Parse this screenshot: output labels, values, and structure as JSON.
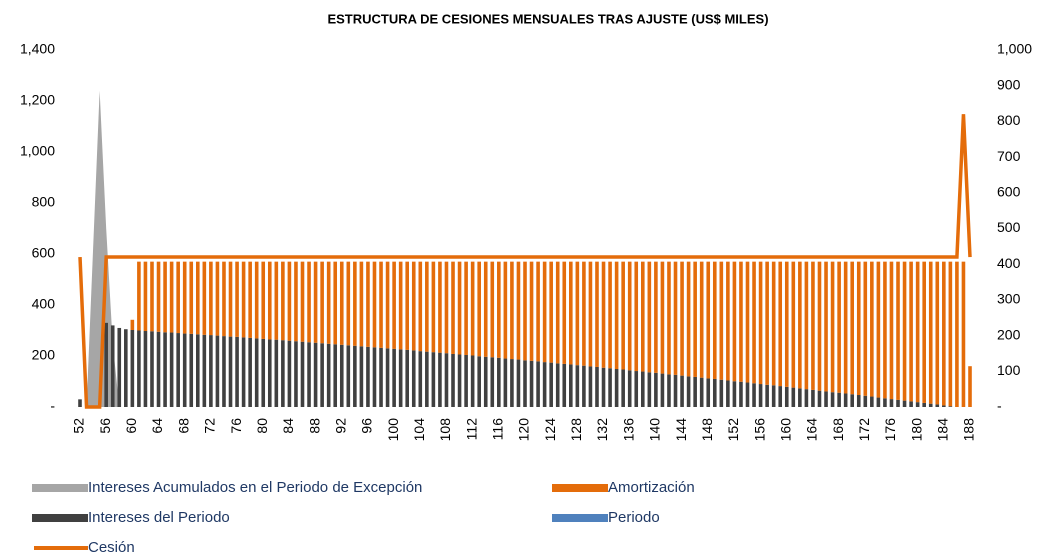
{
  "chart_data": {
    "type": "bar",
    "title": "ESTRUCTURA DE CESIONES MENSUALES TRAS AJUSTE (US$ MILES)",
    "categories": [
      "52",
      null,
      null,
      null,
      "56",
      null,
      null,
      null,
      "60",
      null,
      null,
      null,
      "64",
      null,
      null,
      null,
      "68",
      null,
      null,
      null,
      "72",
      null,
      null,
      null,
      "76",
      null,
      null,
      null,
      "80",
      null,
      null,
      null,
      "84",
      null,
      null,
      null,
      "88",
      null,
      null,
      null,
      "92",
      null,
      null,
      null,
      "96",
      null,
      null,
      null,
      "100",
      null,
      null,
      null,
      "104",
      null,
      null,
      null,
      "108",
      null,
      null,
      null,
      "112",
      null,
      null,
      null,
      "116",
      null,
      null,
      null,
      "120",
      null,
      null,
      null,
      "124",
      null,
      null,
      null,
      "128",
      null,
      null,
      null,
      "132",
      null,
      null,
      null,
      "136",
      null,
      null,
      null,
      "140",
      null,
      null,
      null,
      "144",
      null,
      null,
      null,
      "148",
      null,
      null,
      null,
      "152",
      null,
      null,
      null,
      "156",
      null,
      null,
      null,
      "160",
      null,
      null,
      null,
      "164",
      null,
      null,
      null,
      "168",
      null,
      null,
      null,
      "172",
      null,
      null,
      null,
      "176",
      null,
      null,
      null,
      "180",
      null,
      null,
      null,
      "184",
      null,
      null,
      null,
      "188"
    ],
    "series": [
      {
        "name": "Intereses Acumulados en el Periodo de Excepción",
        "type": "area",
        "color": "#a6a6a6",
        "values": [
          0,
          0,
          620,
          1240,
          700,
          250,
          0,
          0,
          0,
          0,
          0,
          0,
          0,
          0,
          0,
          0,
          0,
          0,
          0,
          0,
          0,
          0,
          0,
          0,
          0,
          0,
          0,
          0,
          0,
          0,
          0,
          0,
          0,
          0,
          0,
          0,
          0,
          0,
          0,
          0,
          0,
          0,
          0,
          0,
          0,
          0,
          0,
          0,
          0,
          0,
          0,
          0,
          0,
          0,
          0,
          0,
          0,
          0,
          0,
          0,
          0,
          0,
          0,
          0,
          0,
          0,
          0,
          0,
          0,
          0,
          0,
          0,
          0,
          0,
          0,
          0,
          0,
          0,
          0,
          0,
          0,
          0,
          0,
          0,
          0,
          0,
          0,
          0,
          0,
          0,
          0,
          0,
          0,
          0,
          0,
          0,
          0,
          0,
          0,
          0,
          0,
          0,
          0,
          0,
          0,
          0,
          0,
          0,
          0,
          0,
          0,
          0,
          0,
          0,
          0,
          0,
          0,
          0,
          0,
          0,
          0,
          0,
          0,
          0,
          0,
          0,
          0,
          0,
          0,
          0,
          0,
          0,
          0,
          0,
          0,
          0,
          0
        ]
      },
      {
        "name": "Amortización",
        "type": "bar",
        "color": "#e46c0a",
        "values": [
          0,
          0,
          0,
          0,
          0,
          0,
          0,
          0,
          40,
          270,
          272,
          273,
          275,
          277,
          278,
          280,
          282,
          283,
          285,
          287,
          288,
          290,
          292,
          294,
          295,
          297,
          299,
          301,
          303,
          305,
          306,
          308,
          310,
          312,
          314,
          316,
          318,
          320,
          322,
          324,
          326,
          328,
          330,
          332,
          334,
          336,
          338,
          340,
          342,
          344,
          346,
          348,
          351,
          353,
          355,
          357,
          359,
          362,
          364,
          366,
          368,
          371,
          373,
          375,
          377,
          380,
          382,
          384,
          387,
          389,
          391,
          394,
          396,
          399,
          401,
          403,
          406,
          408,
          411,
          413,
          416,
          418,
          421,
          423,
          426,
          429,
          431,
          434,
          436,
          439,
          442,
          444,
          447,
          450,
          452,
          455,
          458,
          460,
          463,
          466,
          469,
          471,
          474,
          477,
          480,
          483,
          485,
          488,
          491,
          494,
          497,
          500,
          503,
          506,
          509,
          512,
          514,
          517,
          520,
          523,
          526,
          529,
          533,
          536,
          539,
          542,
          545,
          548,
          551,
          554,
          557,
          560,
          564,
          567,
          570,
          570,
          160
        ]
      },
      {
        "name": "Intereses del Periodo",
        "type": "bar",
        "color": "#404040",
        "values": [
          30,
          0,
          0,
          0,
          330,
          320,
          310,
          305,
          302,
          300,
          298,
          297,
          295,
          293,
          292,
          290,
          288,
          287,
          285,
          283,
          282,
          280,
          278,
          276,
          275,
          273,
          271,
          269,
          267,
          265,
          264,
          262,
          260,
          258,
          256,
          254,
          252,
          250,
          248,
          246,
          244,
          242,
          240,
          238,
          236,
          234,
          232,
          230,
          228,
          226,
          224,
          222,
          219,
          217,
          215,
          213,
          211,
          208,
          206,
          204,
          202,
          199,
          197,
          195,
          193,
          190,
          188,
          186,
          183,
          181,
          179,
          176,
          174,
          171,
          169,
          167,
          164,
          162,
          159,
          157,
          154,
          152,
          149,
          147,
          144,
          141,
          139,
          136,
          134,
          131,
          128,
          126,
          123,
          120,
          118,
          115,
          112,
          110,
          107,
          104,
          101,
          99,
          96,
          93,
          90,
          87,
          85,
          82,
          79,
          76,
          73,
          70,
          67,
          64,
          61,
          58,
          56,
          53,
          50,
          47,
          44,
          41,
          37,
          34,
          31,
          28,
          25,
          22,
          19,
          16,
          13,
          10,
          6,
          3,
          0,
          0,
          0
        ]
      },
      {
        "name": "Periodo",
        "type": "bar",
        "color": "#4f81bd"
      },
      {
        "name": "Cesión",
        "type": "line",
        "axis": "y2",
        "color": "#e46c0a",
        "values": [
          420,
          0,
          0,
          0,
          420,
          420,
          420,
          420,
          420,
          420,
          420,
          420,
          420,
          420,
          420,
          420,
          420,
          420,
          420,
          420,
          420,
          420,
          420,
          420,
          420,
          420,
          420,
          420,
          420,
          420,
          420,
          420,
          420,
          420,
          420,
          420,
          420,
          420,
          420,
          420,
          420,
          420,
          420,
          420,
          420,
          420,
          420,
          420,
          420,
          420,
          420,
          420,
          420,
          420,
          420,
          420,
          420,
          420,
          420,
          420,
          420,
          420,
          420,
          420,
          420,
          420,
          420,
          420,
          420,
          420,
          420,
          420,
          420,
          420,
          420,
          420,
          420,
          420,
          420,
          420,
          420,
          420,
          420,
          420,
          420,
          420,
          420,
          420,
          420,
          420,
          420,
          420,
          420,
          420,
          420,
          420,
          420,
          420,
          420,
          420,
          420,
          420,
          420,
          420,
          420,
          420,
          420,
          420,
          420,
          420,
          420,
          420,
          420,
          420,
          420,
          420,
          420,
          420,
          420,
          420,
          420,
          420,
          420,
          420,
          420,
          420,
          420,
          420,
          420,
          420,
          420,
          420,
          420,
          420,
          420,
          820,
          420
        ]
      }
    ],
    "ylim": [
      0,
      1400
    ],
    "yticks": [
      {
        "value": 0,
        "label": "-"
      },
      200,
      400,
      600,
      800,
      {
        "value": 1000,
        "label": "1,000"
      },
      {
        "value": 1200,
        "label": "1,200"
      },
      {
        "value": 1400,
        "label": "1,400"
      }
    ],
    "y2lim": [
      0,
      1000
    ],
    "y2ticks": [
      {
        "value": 0,
        "label": "-"
      },
      100,
      200,
      300,
      400,
      500,
      600,
      700,
      800,
      900,
      {
        "value": 1000,
        "label": "1,000"
      }
    ],
    "grid": false,
    "legend": "bottom"
  }
}
